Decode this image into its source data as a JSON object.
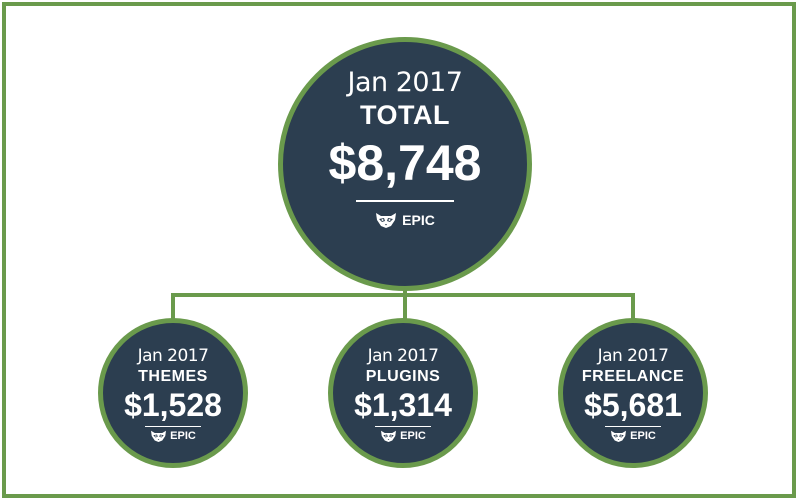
{
  "colors": {
    "node_fill": "#2c3e50",
    "accent_green": "#6a9a4c",
    "text": "#ffffff"
  },
  "root": {
    "date": "Jan 2017",
    "label": "TOTAL",
    "amount": "$8,748",
    "brand": "EPIC",
    "brand_icon": "raccoon-icon"
  },
  "children": [
    {
      "date": "Jan 2017",
      "label": "THEMES",
      "amount": "$1,528",
      "brand": "EPIC",
      "brand_icon": "raccoon-icon"
    },
    {
      "date": "Jan 2017",
      "label": "PLUGINS",
      "amount": "$1,314",
      "brand": "EPIC",
      "brand_icon": "raccoon-icon"
    },
    {
      "date": "Jan 2017",
      "label": "FREELANCE",
      "amount": "$5,681",
      "brand": "EPIC",
      "brand_icon": "raccoon-icon"
    }
  ]
}
